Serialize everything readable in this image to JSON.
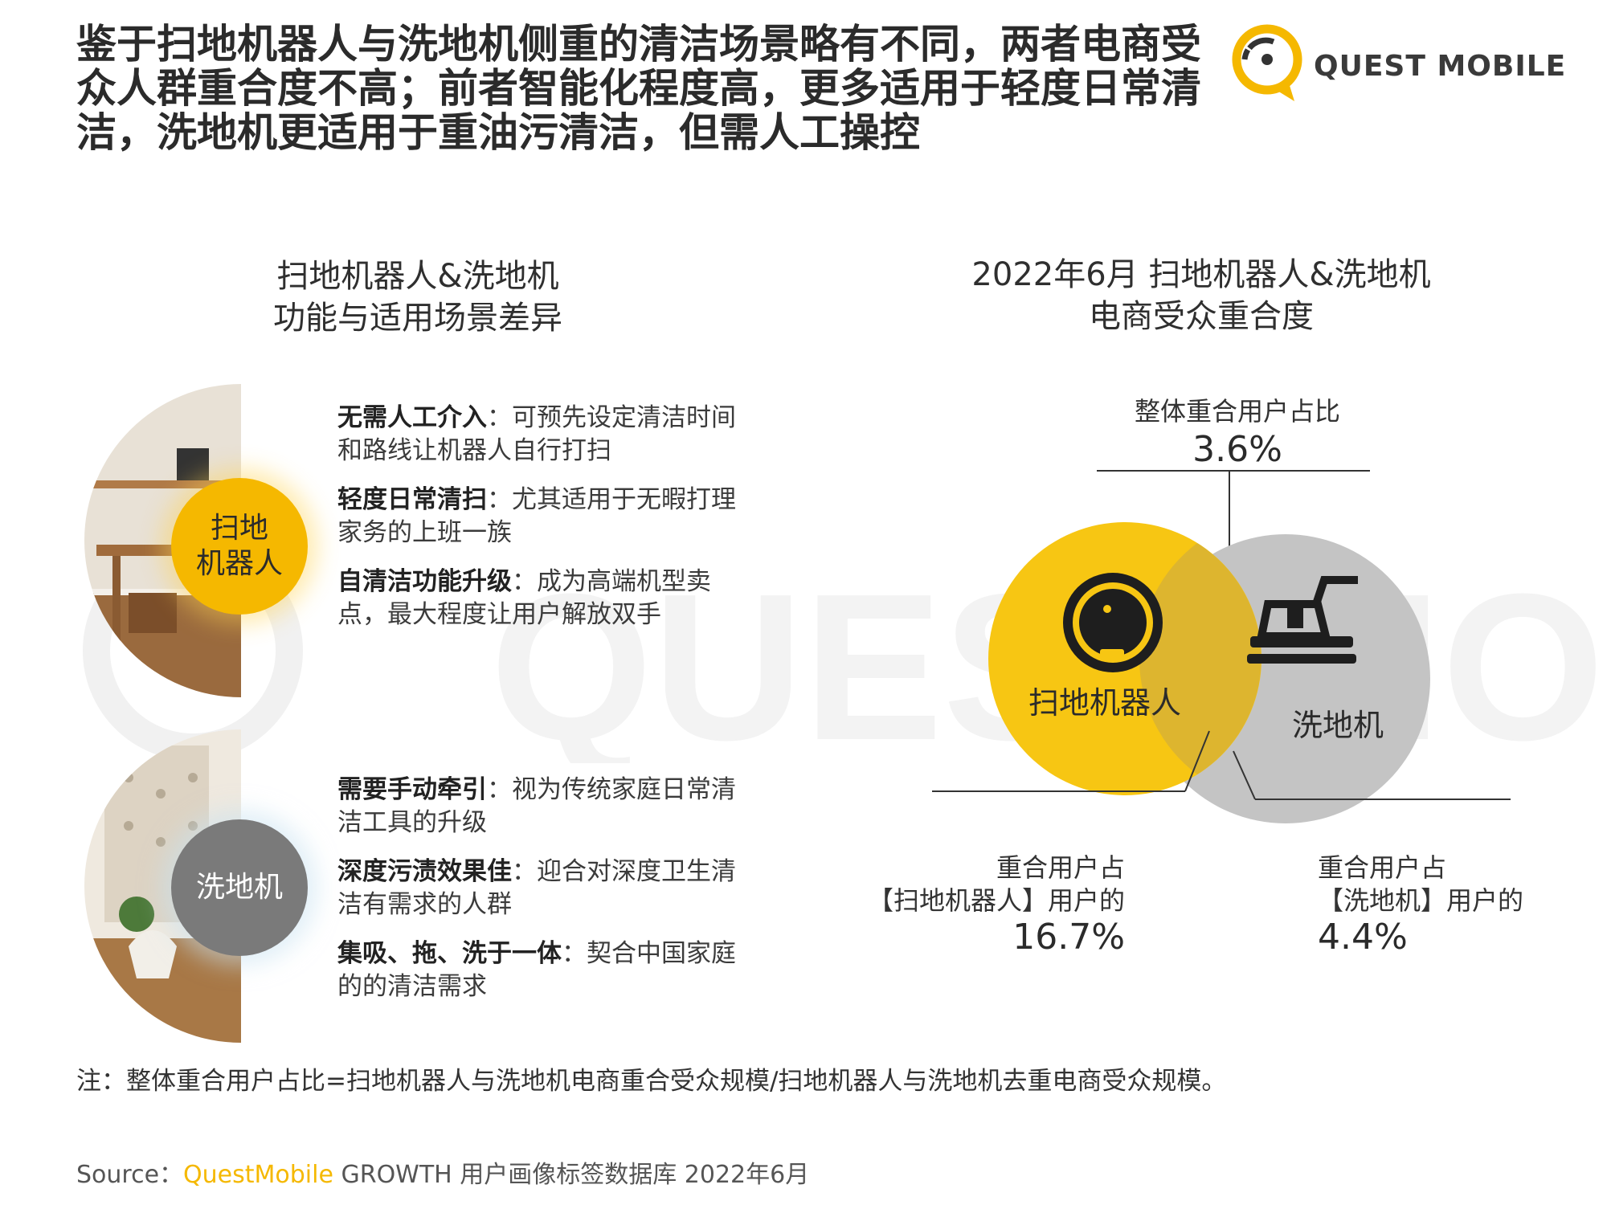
{
  "headline": "鉴于扫地机器人与洗地机侧重的清洁场景略有不同，两者电商受众人群重合度不高；前者智能化程度高，更多适用于轻度日常清洁，洗地机更适用于重油污清洁，但需人工操控",
  "logo": {
    "text": "QUEST MOBILE",
    "color": "#f5b800"
  },
  "left_section": {
    "title_line1": "扫地机器人&洗地机",
    "title_line2": "功能与适用场景差异",
    "robot": {
      "badge_line1": "扫地",
      "badge_line2": "机器人",
      "features": [
        {
          "title": "无需人工介入",
          "sep": "：",
          "desc": "可预先设定清洁时间和路线让机器人自行打扫"
        },
        {
          "title": "轻度日常清扫",
          "sep": "：",
          "desc": "尤其适用于无暇打理家务的上班一族"
        },
        {
          "title": "自清洁功能升级",
          "sep": "：",
          "desc": "成为高端机型卖点，最大程度让用户解放双手"
        }
      ]
    },
    "washer": {
      "badge": "洗地机",
      "features": [
        {
          "title": "需要手动牵引",
          "sep": "：",
          "desc": "视为传统家庭日常清洁工具的升级"
        },
        {
          "title": "深度污渍效果佳",
          "sep": "：",
          "desc": "迎合对深度卫生清洁有需求的人群"
        },
        {
          "title": "集吸、拖、洗于一体",
          "sep": "：",
          "desc": "契合中国家庭的的清洁需求"
        }
      ]
    }
  },
  "right_section": {
    "title_line1": "2022年6月 扫地机器人&洗地机",
    "title_line2": "电商受众重合度",
    "overall_label": "整体重合用户占比",
    "overall_value": "3.6%",
    "circle_robot_label": "扫地机器人",
    "circle_washer_label": "洗地机",
    "robot_share_line1": "重合用户占",
    "robot_share_line2": "【扫地机器人】用户的",
    "robot_share_value": "16.7%",
    "washer_share_line1": "重合用户占",
    "washer_share_line2": "【洗地机】用户的",
    "washer_share_value": "4.4%"
  },
  "note": "注：整体重合用户占比=扫地机器人与洗地机电商重合受众规模/扫地机器人与洗地机去重电商受众规模。",
  "source": {
    "prefix": "Source：",
    "brand": "QuestMobile",
    "rest": " GROWTH 用户画像标签数据库 2022年6月"
  },
  "colors": {
    "yellow": "#f5b800",
    "gray": "#bdbdbd",
    "dark": "#2b2b2b"
  },
  "icons": [
    "robot-vacuum-icon",
    "floor-washer-icon",
    "questmobile-logo-icon"
  ]
}
